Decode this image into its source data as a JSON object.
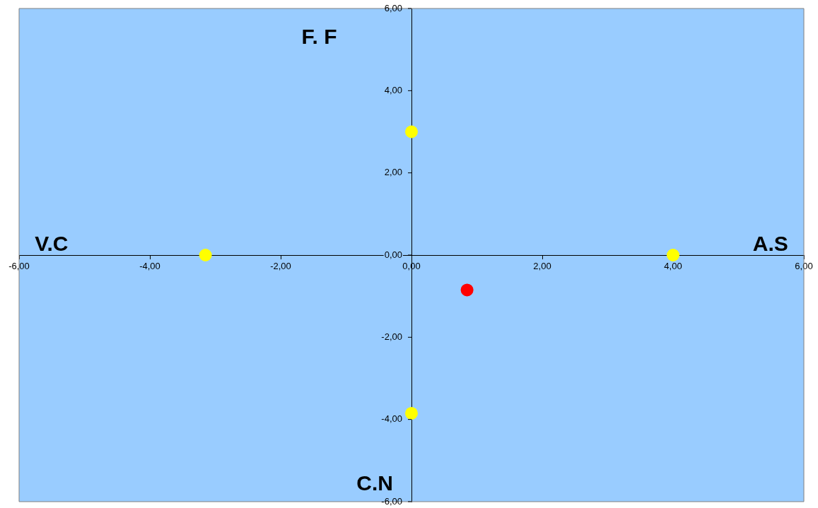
{
  "chart_data": {
    "type": "scatter",
    "grid": false,
    "legend": false,
    "marker": "circle",
    "series": [
      {
        "color": "#ffff00",
        "x": [
          0,
          -3.15,
          4.0,
          0
        ],
        "values": [
          3.0,
          0,
          0,
          -3.85
        ]
      },
      {
        "color": "#ff0000",
        "x": [
          0.85
        ],
        "values": [
          -0.85
        ]
      }
    ],
    "xlim": [
      -6,
      6
    ],
    "ylim": [
      -6,
      6
    ],
    "xticks": [
      {
        "value": -6,
        "label": "-6,00"
      },
      {
        "value": -4,
        "label": "-4,00"
      },
      {
        "value": -2,
        "label": "-2,00"
      },
      {
        "value": 0,
        "label": "0,00"
      },
      {
        "value": 2,
        "label": "2,00"
      },
      {
        "value": 4,
        "label": "4,00"
      },
      {
        "value": 6,
        "label": "6,00"
      }
    ],
    "yticks": [
      {
        "value": -6,
        "label": "-6,00"
      },
      {
        "value": -4,
        "label": "-4,00"
      },
      {
        "value": -2,
        "label": "-2,00"
      },
      {
        "value": 0,
        "label": "0,00"
      },
      {
        "value": 2,
        "label": "2,00"
      },
      {
        "value": 4,
        "label": "4,00"
      },
      {
        "value": 6,
        "label": "6,00"
      }
    ],
    "annotations": [
      "F. F",
      "V.C",
      "A.S",
      "C.N"
    ]
  }
}
